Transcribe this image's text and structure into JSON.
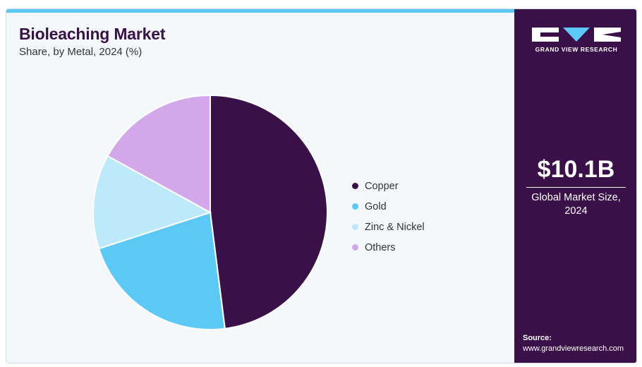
{
  "header": {
    "title": "Bioleaching Market",
    "subtitle": "Share, by Metal, 2024 (%)"
  },
  "chart_data": {
    "type": "pie",
    "title": "Bioleaching Market",
    "subtitle": "Share, by Metal, 2024 (%)",
    "categories": [
      "Copper",
      "Gold",
      "Zinc & Nickel",
      "Others"
    ],
    "values": [
      48,
      22,
      13,
      17
    ],
    "colors": [
      "#3a1049",
      "#5bc8f5",
      "#bde9fa",
      "#d2a8ea"
    ],
    "start_angle_deg": 0,
    "direction": "clockwise",
    "legend_position": "right"
  },
  "sidebar": {
    "brand": "GRAND VIEW RESEARCH",
    "market_value": "$10.1B",
    "market_label_line1": "Global Market Size,",
    "market_label_line2": "2024",
    "source_label": "Source:",
    "source_url": "www.grandviewresearch.com"
  },
  "colors": {
    "brand_dark": "#3a1049",
    "accent": "#5bc8f5"
  }
}
